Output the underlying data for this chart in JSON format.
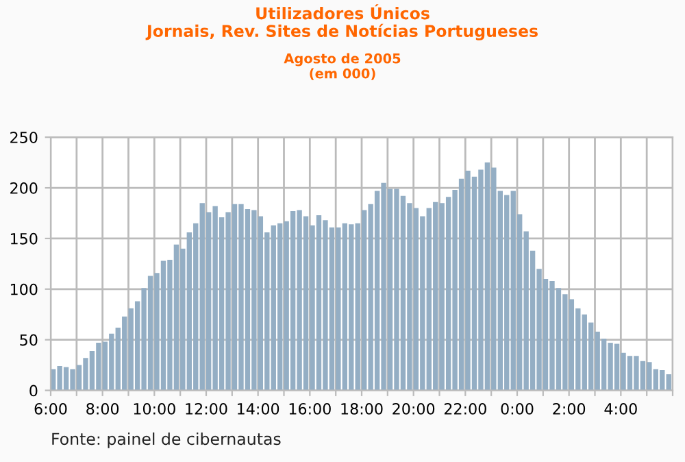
{
  "chart_data": {
    "type": "bar",
    "title": "Utilizadores Únicos\nJornais, Rev. Sites de Notícias Portugueses",
    "subtitle": "Agosto de 2005\n(em 000)",
    "x": [
      "2005-08-01T06:00",
      "2005-08-01T06:15",
      "2005-08-01T06:30",
      "2005-08-01T06:45",
      "2005-08-01T07:00",
      "2005-08-01T07:15",
      "2005-08-01T07:30",
      "2005-08-01T07:45",
      "2005-08-01T08:00",
      "2005-08-01T08:15",
      "2005-08-01T08:30",
      "2005-08-01T08:45",
      "2005-08-01T09:00",
      "2005-08-01T09:15",
      "2005-08-01T09:30",
      "2005-08-01T09:45",
      "2005-08-01T10:00",
      "2005-08-01T10:15",
      "2005-08-01T10:30",
      "2005-08-01T10:45",
      "2005-08-01T11:00",
      "2005-08-01T11:15",
      "2005-08-01T11:30",
      "2005-08-01T11:45",
      "2005-08-01T12:00",
      "2005-08-01T12:15",
      "2005-08-01T12:30",
      "2005-08-01T12:45",
      "2005-08-01T13:00",
      "2005-08-01T13:15",
      "2005-08-01T13:30",
      "2005-08-01T13:45",
      "2005-08-01T14:00",
      "2005-08-01T14:15",
      "2005-08-01T14:30",
      "2005-08-01T14:45",
      "2005-08-01T15:00",
      "2005-08-01T15:15",
      "2005-08-01T15:30",
      "2005-08-01T15:45",
      "2005-08-01T16:00",
      "2005-08-01T16:15",
      "2005-08-01T16:30",
      "2005-08-01T16:45",
      "2005-08-01T17:00",
      "2005-08-01T17:15",
      "2005-08-01T17:30",
      "2005-08-01T17:45",
      "2005-08-01T18:00",
      "2005-08-01T18:15",
      "2005-08-01T18:30",
      "2005-08-01T18:45",
      "2005-08-01T19:00",
      "2005-08-01T19:15",
      "2005-08-01T19:30",
      "2005-08-01T19:45",
      "2005-08-01T20:00",
      "2005-08-01T20:15",
      "2005-08-01T20:30",
      "2005-08-01T20:45",
      "2005-08-01T21:00",
      "2005-08-01T21:15",
      "2005-08-01T21:30",
      "2005-08-01T21:45",
      "2005-08-01T22:00",
      "2005-08-01T22:15",
      "2005-08-01T22:30",
      "2005-08-01T22:45",
      "2005-08-01T23:00",
      "2005-08-01T23:15",
      "2005-08-01T23:30",
      "2005-08-01T23:45",
      "2005-08-02T00:00",
      "2005-08-02T00:15",
      "2005-08-02T00:30",
      "2005-08-02T00:45",
      "2005-08-02T01:00",
      "2005-08-02T01:15",
      "2005-08-02T01:30",
      "2005-08-02T01:45",
      "2005-08-02T02:00",
      "2005-08-02T02:15",
      "2005-08-02T02:30",
      "2005-08-02T02:45",
      "2005-08-02T03:00",
      "2005-08-02T03:15",
      "2005-08-02T03:30",
      "2005-08-02T03:45",
      "2005-08-02T04:00",
      "2005-08-02T04:15",
      "2005-08-02T04:30",
      "2005-08-02T04:45",
      "2005-08-02T05:00",
      "2005-08-02T05:15",
      "2005-08-02T05:30",
      "2005-08-02T05:45"
    ],
    "values": [
      21,
      24,
      23,
      21,
      25,
      32,
      39,
      47,
      48,
      56,
      62,
      73,
      81,
      88,
      101,
      113,
      116,
      128,
      129,
      144,
      140,
      156,
      165,
      185,
      176,
      182,
      171,
      176,
      184,
      184,
      179,
      178,
      172,
      156,
      163,
      165,
      167,
      177,
      178,
      172,
      163,
      173,
      168,
      161,
      161,
      165,
      164,
      165,
      178,
      184,
      197,
      205,
      199,
      199,
      192,
      185,
      180,
      172,
      180,
      186,
      185,
      191,
      198,
      209,
      217,
      211,
      218,
      225,
      220,
      197,
      193,
      197,
      174,
      157,
      138,
      120,
      110,
      108,
      101,
      95,
      90,
      81,
      75,
      67,
      58,
      51,
      47,
      46,
      37,
      34,
      34,
      29,
      28,
      21,
      20,
      16
    ],
    "color": "#94aec4",
    "xlim": [
      "2005-08-01T06:00",
      "2005-08-02T06:00"
    ],
    "xticks": [
      {
        "value": "2005-08-01T06:00",
        "label": "6:00"
      },
      {
        "value": "2005-08-01T07:00",
        "label": null
      },
      {
        "value": "2005-08-01T08:00",
        "label": "8:00"
      },
      {
        "value": "2005-08-01T09:00",
        "label": null
      },
      {
        "value": "2005-08-01T10:00",
        "label": "10:00"
      },
      {
        "value": "2005-08-01T11:00",
        "label": null
      },
      {
        "value": "2005-08-01T12:00",
        "label": "12:00"
      },
      {
        "value": "2005-08-01T13:00",
        "label": null
      },
      {
        "value": "2005-08-01T14:00",
        "label": "14:00"
      },
      {
        "value": "2005-08-01T15:00",
        "label": null
      },
      {
        "value": "2005-08-01T16:00",
        "label": "16:00"
      },
      {
        "value": "2005-08-01T17:00",
        "label": null
      },
      {
        "value": "2005-08-01T18:00",
        "label": "18:00"
      },
      {
        "value": "2005-08-01T19:00",
        "label": null
      },
      {
        "value": "2005-08-01T20:00",
        "label": "20:00"
      },
      {
        "value": "2005-08-01T21:00",
        "label": null
      },
      {
        "value": "2005-08-01T22:00",
        "label": "22:00"
      },
      {
        "value": "2005-08-01T23:00",
        "label": null
      },
      {
        "value": "2005-08-02T00:00",
        "label": "0:00"
      },
      {
        "value": "2005-08-02T01:00",
        "label": null
      },
      {
        "value": "2005-08-02T02:00",
        "label": "2:00"
      },
      {
        "value": "2005-08-02T03:00",
        "label": null
      },
      {
        "value": "2005-08-02T04:00",
        "label": "4:00"
      },
      {
        "value": "2005-08-02T05:00",
        "label": null
      },
      {
        "value": "2005-08-02T06:00",
        "label": null
      }
    ],
    "ylim": [
      0,
      250
    ],
    "yticks": [
      0,
      50,
      100,
      150,
      200,
      250
    ],
    "grid": true,
    "annotations": [
      "Fonte: painel de cibernautas"
    ]
  }
}
